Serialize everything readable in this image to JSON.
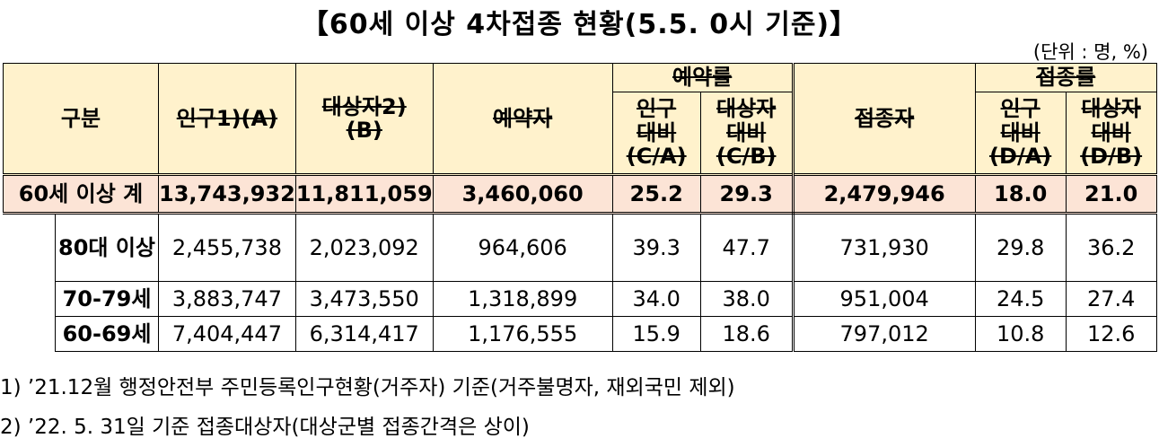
{
  "title": "【60세 이상 4차접종 현황(5.5. 0시 기준)】",
  "unit": "(단위 : 명, %)",
  "header": {
    "category": "구분",
    "population": "인구1)(A)",
    "target": "대상자2)",
    "target_sub": "(B)",
    "reserved": "예약자",
    "reservation_rate": "예약률",
    "rate_pop": "인구",
    "rate_pop_2": "대비",
    "rate_pop_3": "(C/A)",
    "rate_target": "대상자",
    "rate_target_2": "대비",
    "rate_target_3": "(C/B)",
    "vaccinated": "접종자",
    "vaccination_rate": "접종률",
    "vrate_pop": "인구",
    "vrate_pop_2": "대비",
    "vrate_pop_3": "(D/A)",
    "vrate_target": "대상자",
    "vrate_target_2": "대비",
    "vrate_target_3": "(D/B)"
  },
  "total_row": {
    "label": "60세 이상 계",
    "population": "13,743,932",
    "target": "11,811,059",
    "reserved": "3,460,060",
    "res_rate_pop": "25.2",
    "res_rate_target": "29.3",
    "vaccinated": "2,479,946",
    "vac_rate_pop": "18.0",
    "vac_rate_target": "21.0"
  },
  "rows": [
    {
      "label": "80대 이상",
      "population": "2,455,738",
      "target": "2,023,092",
      "reserved": "964,606",
      "res_rate_pop": "39.3",
      "res_rate_target": "47.7",
      "vaccinated": "731,930",
      "vac_rate_pop": "29.8",
      "vac_rate_target": "36.2"
    },
    {
      "label": "70-79세",
      "population": "3,883,747",
      "target": "3,473,550",
      "reserved": "1,318,899",
      "res_rate_pop": "34.0",
      "res_rate_target": "38.0",
      "vaccinated": "951,004",
      "vac_rate_pop": "24.5",
      "vac_rate_target": "27.4"
    },
    {
      "label": "60-69세",
      "population": "7,404,447",
      "target": "6,314,417",
      "reserved": "1,176,555",
      "res_rate_pop": "15.9",
      "res_rate_target": "18.6",
      "vaccinated": "797,012",
      "vac_rate_pop": "10.8",
      "vac_rate_target": "12.6"
    }
  ],
  "notes": [
    "1) ’21.12월 행정안전부 주민등록인구현황(거주자) 기준(거주불명자, 재외국민 제외)",
    "2) ’22. 5. 31일 기준 접종대상자(대상군별 접종간격은 상이)"
  ]
}
